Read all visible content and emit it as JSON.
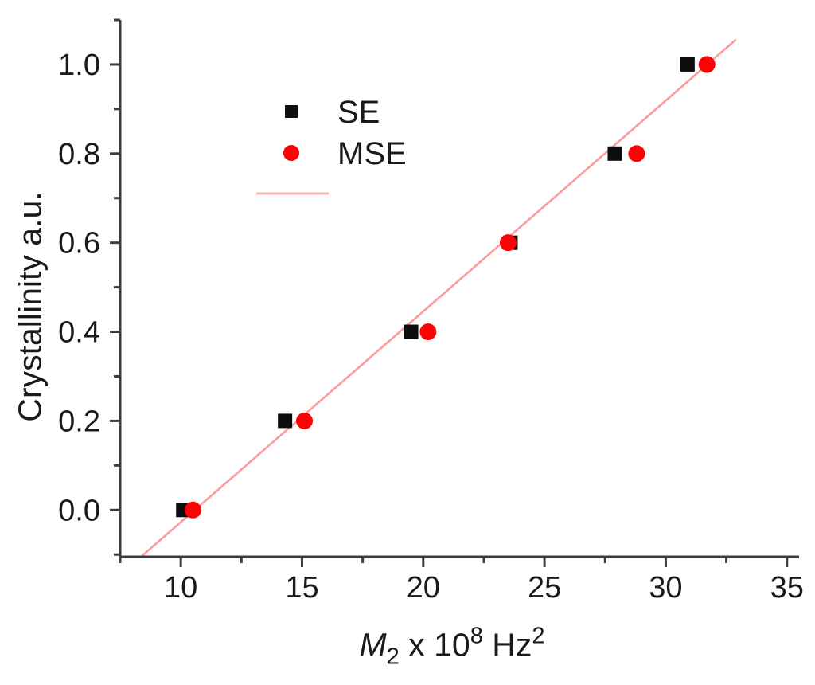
{
  "chart_data": {
    "type": "scatter",
    "title": "",
    "xlabel": "M2 x 10^8 Hz^2",
    "xlabel_parts": [
      {
        "text": "M",
        "style": "italic"
      },
      {
        "text": "2",
        "style": "sub"
      },
      {
        "text": " x 10",
        "style": "normal"
      },
      {
        "text": "8",
        "style": "sup"
      },
      {
        "text": " Hz",
        "style": "normal"
      },
      {
        "text": "2",
        "style": "sup"
      }
    ],
    "ylabel": "Crystallinity a.u.",
    "xlim": [
      7.5,
      35.5
    ],
    "ylim": [
      -0.105,
      1.1
    ],
    "grid": false,
    "legend_position": "upper-left-inside",
    "x_major_ticks": [
      10,
      15,
      20,
      25,
      30,
      35
    ],
    "x_minor_ticks": [
      7.5,
      12.5,
      17.5,
      22.5,
      27.5,
      32.5
    ],
    "y_major_ticks": [
      0.0,
      0.2,
      0.4,
      0.6,
      0.8,
      1.0
    ],
    "y_minor_ticks": [
      -0.1,
      0.1,
      0.3,
      0.5,
      0.7,
      0.9,
      1.1
    ],
    "x_tick_labels": [
      "10",
      "15",
      "20",
      "25",
      "30",
      "35"
    ],
    "y_tick_labels": [
      "0.0",
      "0.2",
      "0.4",
      "0.6",
      "0.8",
      "1.0"
    ],
    "series": [
      {
        "name": "SE",
        "marker": "square",
        "color": "#0d0d0d",
        "size": 18,
        "points": [
          [
            10.1,
            0.0
          ],
          [
            14.3,
            0.2
          ],
          [
            19.5,
            0.4
          ],
          [
            23.6,
            0.6
          ],
          [
            27.9,
            0.8
          ],
          [
            30.9,
            1.0
          ]
        ]
      },
      {
        "name": "MSE",
        "marker": "circle",
        "color": "#f90505",
        "size": 21,
        "points": [
          [
            10.5,
            0.0
          ],
          [
            15.1,
            0.2
          ],
          [
            20.2,
            0.4
          ],
          [
            23.5,
            0.6
          ],
          [
            28.8,
            0.8
          ],
          [
            31.7,
            1.0
          ]
        ]
      }
    ],
    "fit_line": {
      "label": "",
      "color": "#fb9b9b",
      "width": 2.6,
      "x1": 8.4,
      "y1": -0.103,
      "x2": 32.9,
      "y2": 1.056
    }
  },
  "legend": {
    "items": [
      {
        "label": "SE",
        "marker": "square",
        "color": "#0d0d0d"
      },
      {
        "label": "MSE",
        "marker": "circle",
        "color": "#f90505"
      },
      {
        "label": "",
        "marker": "line",
        "color": "#fcb2b2"
      }
    ]
  },
  "axes": {
    "color": "#3c3c3c",
    "text_color": "#1a1a1a"
  }
}
